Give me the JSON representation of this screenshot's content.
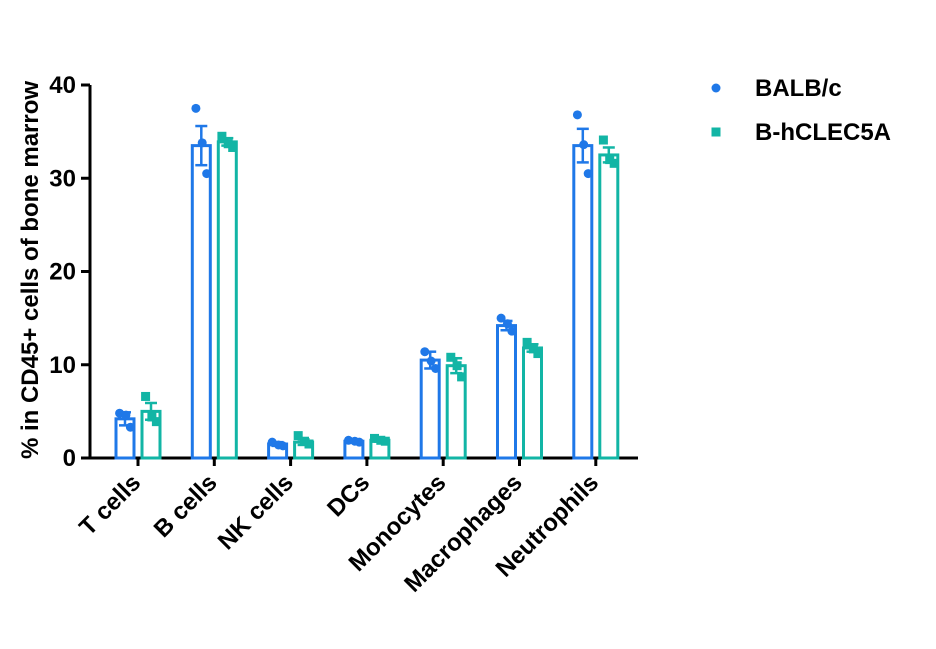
{
  "chart_data": {
    "type": "bar",
    "ylabel": "% in CD45+ cells of bone marrow",
    "ylim": [
      0,
      40
    ],
    "yticks": [
      0,
      10,
      20,
      30,
      40
    ],
    "categories": [
      "T cells",
      "B cells",
      "NK cells",
      "DCs",
      "Monocytes",
      "Macrophages",
      "Neutrophils"
    ],
    "legend_position": "top-right",
    "grid": false,
    "series": [
      {
        "name": "BALB/c",
        "color": "#1f78e8",
        "marker": "circle",
        "values": [
          4.2,
          33.5,
          1.5,
          1.8,
          10.5,
          14.2,
          33.5
        ],
        "errors": [
          0.7,
          2.1,
          0.2,
          0.15,
          0.9,
          0.5,
          1.8
        ],
        "points": [
          [
            4.8,
            4.6,
            3.3
          ],
          [
            37.5,
            33.8,
            30.5
          ],
          [
            1.7,
            1.4,
            1.3
          ],
          [
            1.9,
            1.8,
            1.7
          ],
          [
            11.4,
            10.4,
            9.6
          ],
          [
            15.0,
            14.4,
            13.6
          ],
          [
            36.8,
            33.6,
            30.5
          ]
        ]
      },
      {
        "name": "B-hCLEC5A",
        "color": "#12b5a5",
        "marker": "square",
        "values": [
          5.0,
          33.9,
          1.7,
          1.9,
          9.9,
          11.8,
          32.5
        ],
        "errors": [
          0.9,
          0.4,
          0.3,
          0.15,
          0.8,
          0.4,
          0.8
        ],
        "points": [
          [
            6.6,
            4.4,
            3.9
          ],
          [
            34.5,
            33.7,
            33.3
          ],
          [
            2.4,
            1.8,
            1.5
          ],
          [
            2.1,
            1.9,
            1.8
          ],
          [
            10.8,
            9.9,
            8.7
          ],
          [
            12.4,
            11.7,
            11.2
          ],
          [
            34.1,
            32.0,
            31.6
          ]
        ]
      }
    ]
  }
}
